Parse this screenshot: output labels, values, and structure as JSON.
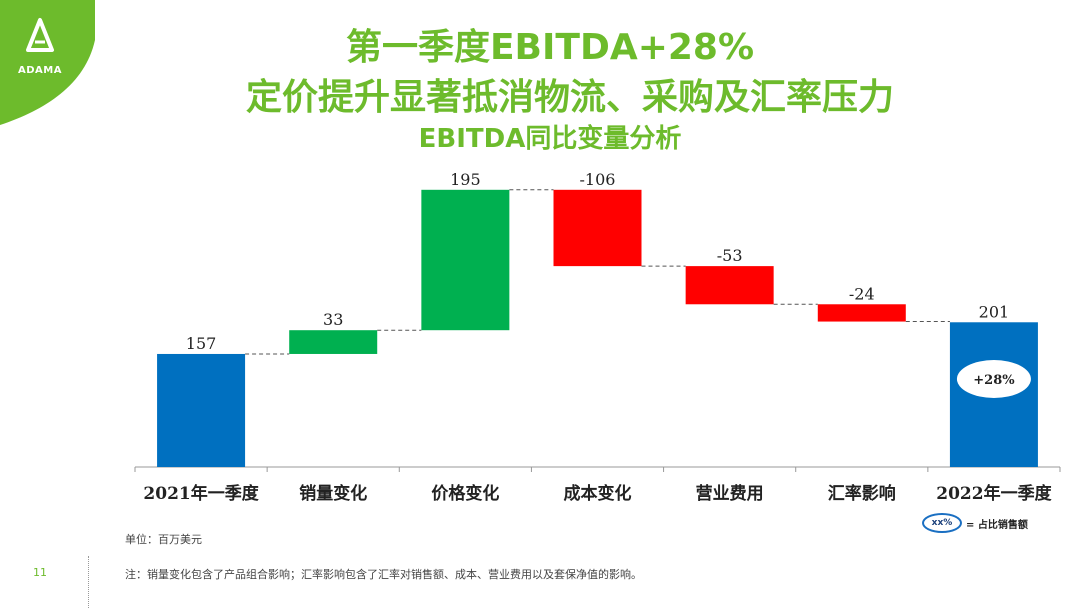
{
  "logo": {
    "text": "ADAMA"
  },
  "header": {
    "title_line1": "第一季度EBITDA+28%",
    "title_line2": "定价提升显著抵消物流、采购及汇率压力",
    "title_line3": "EBITDA同比变量分析"
  },
  "colors": {
    "brand_green": "#6dbb2c",
    "total": "#0070c0",
    "increase": "#00b050",
    "decrease": "#ff0000"
  },
  "chart_data": {
    "type": "waterfall",
    "categories": [
      "2021年一季度",
      "销量变化",
      "价格变化",
      "成本变化",
      "营业费用",
      "汇率影响",
      "2022年一季度"
    ],
    "values": [
      157,
      33,
      195,
      -106,
      -53,
      -24,
      201
    ],
    "labels": [
      "157",
      "33",
      "195",
      "-106",
      "-53",
      "-24",
      "201"
    ],
    "kinds": [
      "total",
      "increase",
      "increase",
      "decrease",
      "decrease",
      "decrease",
      "total"
    ],
    "annotation": {
      "category": "2022年一季度",
      "text": "+28%"
    }
  },
  "legend": {
    "oval_text": "xx%",
    "text": "= 占比销售额"
  },
  "footer": {
    "unit": "单位：百万美元",
    "note": "注：销量变化包含了产品组合影响；汇率影响包含了汇率对销售额、成本、营业费用以及套保净值的影响。",
    "page_number": "11"
  }
}
